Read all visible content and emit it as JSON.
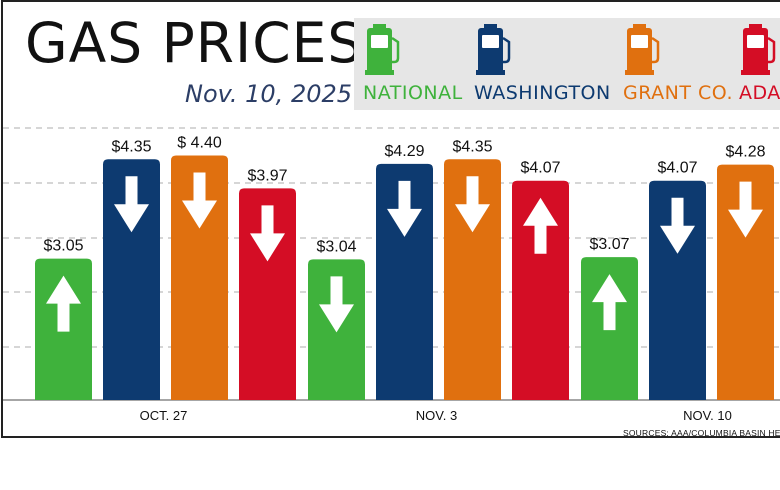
{
  "header": {
    "title": "GAS PRICES",
    "date": "Nov. 10, 2025"
  },
  "legend": [
    {
      "label": "NATIONAL",
      "color": "#3fb23c",
      "icon": "gas-pump-icon"
    },
    {
      "label": "WASHINGTON",
      "color": "#0d3a70",
      "icon": "gas-pump-icon"
    },
    {
      "label": "GRANT CO.",
      "color": "#e0700f",
      "icon": "gas-pump-icon"
    },
    {
      "label": "ADAM",
      "color": "#d40d25",
      "icon": "gas-pump-icon"
    }
  ],
  "source": "SOURCES: AAA/COLUMBIA BASIN HE",
  "chart_data": {
    "type": "bar",
    "title": "GAS PRICES",
    "subtitle": "Nov. 10, 2025",
    "categories": [
      "OCT. 27",
      "NOV. 3",
      "NOV. 10"
    ],
    "series": [
      {
        "name": "NATIONAL",
        "color": "#3fb23c",
        "values": [
          3.05,
          3.04,
          3.07
        ],
        "labels": [
          "$3.05",
          "$3.04",
          "$3.07"
        ],
        "trend": [
          "up",
          "down",
          "up"
        ]
      },
      {
        "name": "WASHINGTON",
        "color": "#0d3a70",
        "values": [
          4.35,
          4.29,
          4.07
        ],
        "labels": [
          "$4.35",
          "$4.29",
          "$4.07"
        ],
        "trend": [
          "down",
          "down",
          "down"
        ]
      },
      {
        "name": "GRANT CO.",
        "color": "#e0700f",
        "values": [
          4.4,
          4.35,
          4.28
        ],
        "labels": [
          "$ 4.40",
          "$4.35",
          "$4.28"
        ],
        "trend": [
          "down",
          "down",
          "down"
        ]
      },
      {
        "name": "ADAMS CO.",
        "color": "#d40d25",
        "values": [
          3.97,
          4.07,
          null
        ],
        "labels": [
          "$3.97",
          "$4.07",
          ""
        ],
        "trend": [
          "down",
          "up",
          ""
        ]
      }
    ],
    "ylim": [
      1.2,
      5.1
    ],
    "grid": true,
    "xlabel": "",
    "ylabel": ""
  }
}
